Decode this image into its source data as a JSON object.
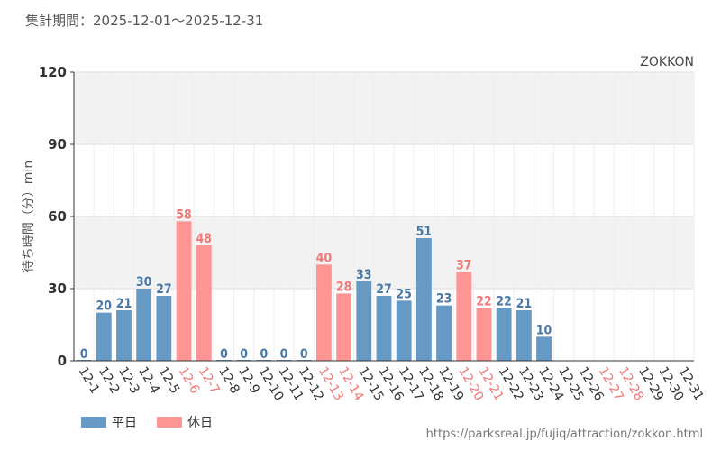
{
  "header": {
    "period": "集計期間：2025-12-01～2025-12-31",
    "attraction": "ZOKKON"
  },
  "footer": {
    "source": "https://parksreal.jp/fujiq/attraction/zokkon.html"
  },
  "legend": {
    "weekday_label": "平日",
    "holiday_label": "休日"
  },
  "colors": {
    "weekday": "#6699c4",
    "holiday": "#ff9494",
    "weekday_text": "#4a78a6",
    "holiday_text": "#f27878",
    "tick_weekday": "#333333",
    "band": "#f2f2f2",
    "grid": "#dddddd"
  },
  "chart_data": {
    "type": "bar",
    "title": "集計期間：2025-12-01～2025-12-31",
    "xlabel": "",
    "ylabel": "待ち時間（分）min",
    "ylim": [
      0,
      120
    ],
    "yticks": [
      0,
      30,
      60,
      90,
      120
    ],
    "categories": [
      "12-1",
      "12-2",
      "12-3",
      "12-4",
      "12-5",
      "12-6",
      "12-7",
      "12-8",
      "12-9",
      "12-10",
      "12-11",
      "12-12",
      "12-13",
      "12-14",
      "12-15",
      "12-16",
      "12-17",
      "12-18",
      "12-19",
      "12-20",
      "12-21",
      "12-22",
      "12-23",
      "12-24",
      "12-25",
      "12-26",
      "12-27",
      "12-28",
      "12-29",
      "12-30",
      "12-31"
    ],
    "values": [
      0,
      20,
      21,
      30,
      27,
      58,
      48,
      0,
      0,
      0,
      0,
      0,
      40,
      28,
      33,
      27,
      25,
      51,
      23,
      37,
      22,
      22,
      21,
      10,
      null,
      null,
      null,
      null,
      null,
      null,
      null
    ],
    "day_type": [
      "weekday",
      "weekday",
      "weekday",
      "weekday",
      "weekday",
      "holiday",
      "holiday",
      "weekday",
      "weekday",
      "weekday",
      "weekday",
      "weekday",
      "holiday",
      "holiday",
      "weekday",
      "weekday",
      "weekday",
      "weekday",
      "weekday",
      "holiday",
      "holiday",
      "weekday",
      "weekday",
      "weekday",
      "weekday",
      "weekday",
      "holiday",
      "holiday",
      "weekday",
      "weekday",
      "weekday"
    ],
    "series": [
      {
        "name": "平日"
      },
      {
        "name": "休日"
      }
    ]
  }
}
